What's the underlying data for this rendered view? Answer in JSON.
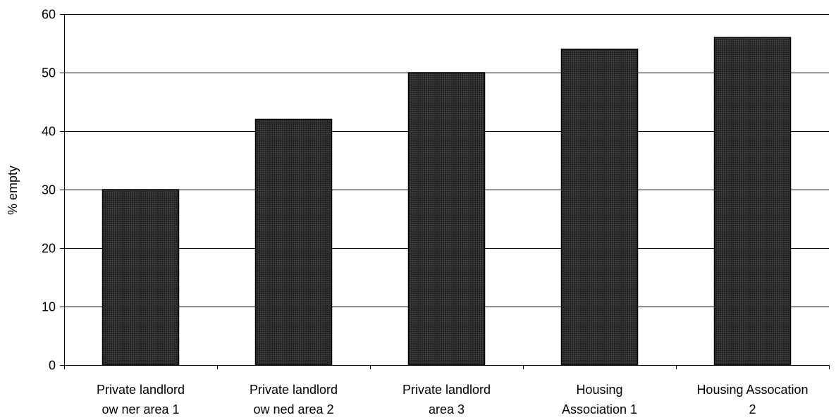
{
  "chart_data": {
    "type": "bar",
    "title": "",
    "xlabel": "",
    "ylabel": "% empty",
    "ylim": [
      0,
      60
    ],
    "yticks": [
      0,
      10,
      20,
      30,
      40,
      50,
      60
    ],
    "grid": true,
    "categories": [
      "Private landlord ow ner area 1",
      "Private landlord ow ned area 2",
      "Private landlord area 3",
      "Housing Association 1",
      "Housing Assocation 2"
    ],
    "category_lines": [
      [
        "Private landlord",
        "ow ner area 1"
      ],
      [
        "Private landlord",
        "ow ned area 2"
      ],
      [
        "Private landlord",
        "area 3"
      ],
      [
        "Housing",
        "Association 1"
      ],
      [
        "Housing Assocation",
        "2"
      ]
    ],
    "values": [
      30,
      42,
      50,
      54,
      56
    ],
    "colors": {
      "bar_fill": "#2b2b2b",
      "bar_stroke": "#000000",
      "grid": "#000000",
      "axis": "#000000"
    }
  }
}
